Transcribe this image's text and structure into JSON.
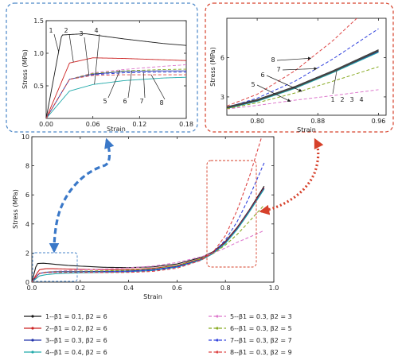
{
  "chart_data": [
    {
      "id": "main",
      "type": "line",
      "xlabel": "Strain",
      "ylabel": "Stress (MPa)",
      "xlim": [
        0,
        1.0
      ],
      "ylim": [
        0,
        10
      ],
      "xticks": [
        "0.0",
        "0.2",
        "0.4",
        "0.6",
        "0.8",
        "1.0"
      ],
      "yticks": [
        "0",
        "2",
        "4",
        "6",
        "8",
        "10"
      ],
      "series": [
        {
          "name": "1",
          "legend": "1--β1 = 0.1, β2 = 6",
          "color": "#1a1a1a",
          "dash": "solid",
          "x": [
            0,
            0.02,
            0.05,
            0.1,
            0.15,
            0.2,
            0.3,
            0.4,
            0.5,
            0.6,
            0.7,
            0.75,
            0.8,
            0.85,
            0.9,
            0.96
          ],
          "y": [
            0,
            1.28,
            1.3,
            1.22,
            1.15,
            1.1,
            1.02,
            1.0,
            1.05,
            1.25,
            1.7,
            2.1,
            2.8,
            3.8,
            5.0,
            6.6
          ]
        },
        {
          "name": "2",
          "legend": "2--β1 = 0.2, β2 = 6",
          "color": "#cc2222",
          "dash": "solid",
          "x": [
            0,
            0.03,
            0.06,
            0.1,
            0.15,
            0.2,
            0.3,
            0.4,
            0.5,
            0.6,
            0.7,
            0.75,
            0.8,
            0.85,
            0.9,
            0.96
          ],
          "y": [
            0,
            0.85,
            0.93,
            0.92,
            0.9,
            0.88,
            0.86,
            0.87,
            0.95,
            1.15,
            1.62,
            2.05,
            2.75,
            3.75,
            4.95,
            6.5
          ]
        },
        {
          "name": "3",
          "legend": "3--β1 = 0.3, β2 = 6",
          "color": "#2233aa",
          "dash": "solid",
          "x": [
            0,
            0.03,
            0.06,
            0.1,
            0.15,
            0.2,
            0.3,
            0.4,
            0.5,
            0.6,
            0.7,
            0.75,
            0.8,
            0.85,
            0.9,
            0.96
          ],
          "y": [
            0,
            0.6,
            0.68,
            0.72,
            0.73,
            0.73,
            0.74,
            0.77,
            0.86,
            1.08,
            1.56,
            2.0,
            2.7,
            3.7,
            4.9,
            6.45
          ]
        },
        {
          "name": "4",
          "legend": "4--β1 = 0.4, β2 = 6",
          "color": "#22aaaa",
          "dash": "solid",
          "x": [
            0,
            0.03,
            0.06,
            0.1,
            0.15,
            0.2,
            0.3,
            0.4,
            0.5,
            0.6,
            0.7,
            0.75,
            0.8,
            0.85,
            0.9,
            0.96
          ],
          "y": [
            0,
            0.42,
            0.52,
            0.58,
            0.62,
            0.64,
            0.67,
            0.71,
            0.8,
            1.03,
            1.52,
            1.97,
            2.66,
            3.65,
            4.85,
            6.4
          ]
        },
        {
          "name": "5",
          "legend": "5--β1 = 0.3, β2 = 3",
          "color": "#dd77cc",
          "dash": "dash",
          "x": [
            0,
            0.03,
            0.06,
            0.1,
            0.15,
            0.2,
            0.3,
            0.4,
            0.5,
            0.6,
            0.7,
            0.75,
            0.8,
            0.85,
            0.9,
            0.96
          ],
          "y": [
            0,
            0.6,
            0.7,
            0.75,
            0.8,
            0.84,
            0.9,
            0.98,
            1.1,
            1.35,
            1.75,
            2.0,
            2.35,
            2.75,
            3.1,
            3.55
          ]
        },
        {
          "name": "6",
          "legend": "6--β1 = 0.3, β2 = 5",
          "color": "#88aa22",
          "dash": "dash",
          "x": [
            0,
            0.03,
            0.06,
            0.1,
            0.15,
            0.2,
            0.3,
            0.4,
            0.5,
            0.6,
            0.7,
            0.75,
            0.8,
            0.85,
            0.9,
            0.96
          ],
          "y": [
            0,
            0.6,
            0.69,
            0.73,
            0.75,
            0.76,
            0.78,
            0.82,
            0.92,
            1.14,
            1.6,
            1.98,
            2.55,
            3.3,
            4.2,
            5.3
          ]
        },
        {
          "name": "7",
          "legend": "7--β1 = 0.3, β2 = 7",
          "color": "#3344dd",
          "dash": "dash",
          "x": [
            0,
            0.03,
            0.06,
            0.1,
            0.15,
            0.2,
            0.3,
            0.4,
            0.5,
            0.6,
            0.7,
            0.75,
            0.8,
            0.85,
            0.9,
            0.96
          ],
          "y": [
            0,
            0.6,
            0.67,
            0.7,
            0.71,
            0.71,
            0.71,
            0.73,
            0.81,
            1.03,
            1.53,
            2.03,
            2.9,
            4.2,
            5.9,
            8.2
          ]
        },
        {
          "name": "8",
          "legend": "8--β1 = 0.3, β2 = 9",
          "color": "#dd4444",
          "dash": "dash",
          "x": [
            0,
            0.03,
            0.06,
            0.1,
            0.15,
            0.2,
            0.3,
            0.4,
            0.5,
            0.6,
            0.7,
            0.75,
            0.8,
            0.85,
            0.9,
            0.95
          ],
          "y": [
            0,
            0.6,
            0.66,
            0.67,
            0.67,
            0.67,
            0.66,
            0.67,
            0.74,
            0.96,
            1.5,
            2.08,
            3.2,
            5.0,
            7.3,
            10.0
          ]
        }
      ]
    },
    {
      "id": "inset_small_strain",
      "type": "line",
      "xlabel": "Strain",
      "ylabel": "Stress (MPa)",
      "xlim": [
        0,
        0.18
      ],
      "ylim": [
        0,
        1.5
      ],
      "xticks": [
        "0.00",
        "0.06",
        "0.12",
        "0.18"
      ],
      "yticks": [
        "0.5",
        "1.0",
        "1.5"
      ],
      "labels": [
        "1",
        "2",
        "3",
        "4",
        "5",
        "6",
        "7",
        "8"
      ]
    },
    {
      "id": "inset_large_strain",
      "type": "line",
      "xlabel": "Strain",
      "ylabel": "Stress (MPa)",
      "xlim": [
        0.76,
        0.97
      ],
      "ylim": [
        1.6,
        9.0
      ],
      "xticks": [
        "0.80",
        "0.88",
        "0.96"
      ],
      "yticks": [
        "3",
        "6"
      ],
      "labels": [
        "8",
        "7",
        "6",
        "5",
        "1",
        "2",
        "3",
        "4"
      ]
    }
  ]
}
